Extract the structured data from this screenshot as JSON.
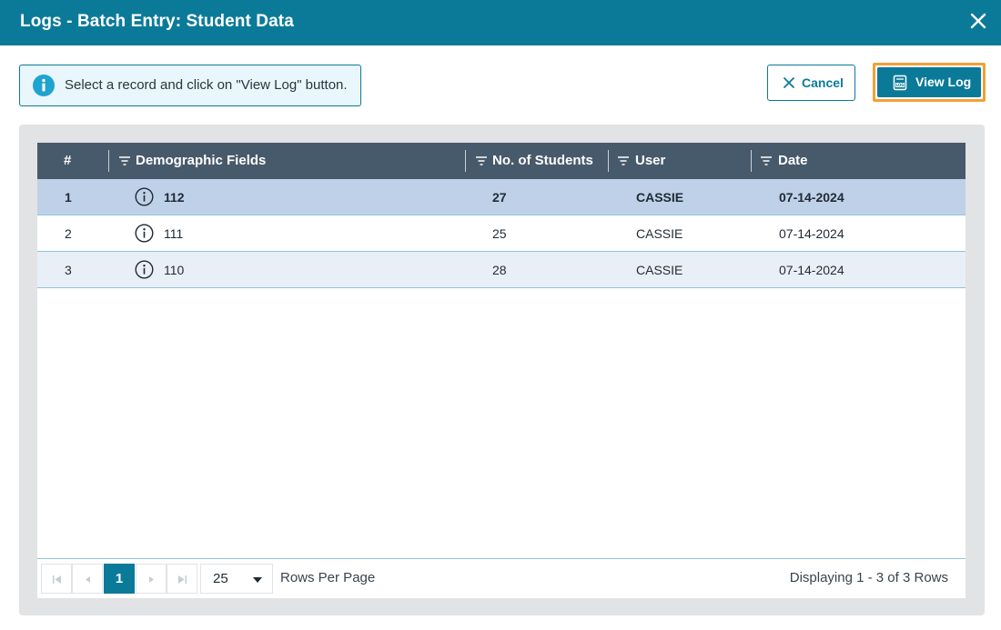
{
  "dialog": {
    "title": "Logs - Batch Entry: Student Data",
    "close_icon": "close-icon"
  },
  "info": {
    "icon": "info-circle-icon",
    "message": "Select a record and click on \"View Log\" button."
  },
  "actions": {
    "cancel_label": "Cancel",
    "view_log_label": "View Log"
  },
  "table": {
    "columns": [
      {
        "label": "#",
        "filter": false
      },
      {
        "label": "Demographic Fields",
        "filter": true
      },
      {
        "label": "No. of Students",
        "filter": true
      },
      {
        "label": "User",
        "filter": true
      },
      {
        "label": "Date",
        "filter": true
      }
    ],
    "rows": [
      {
        "num": "1",
        "field": "112",
        "students": "27",
        "user": "CASSIE",
        "date": "07-14-2024",
        "selected": true
      },
      {
        "num": "2",
        "field": "111",
        "students": "25",
        "user": "CASSIE",
        "date": "07-14-2024",
        "selected": false
      },
      {
        "num": "3",
        "field": "110",
        "students": "28",
        "user": "CASSIE",
        "date": "07-14-2024",
        "selected": false
      }
    ]
  },
  "pager": {
    "current_page": "1",
    "page_size": "25",
    "rows_per_page_label": "Rows Per Page",
    "displaying": "Displaying 1 - 3 of 3 Rows"
  },
  "colors": {
    "primary": "#0b7a99",
    "header": "#475a6b",
    "selected_row": "#bed1e8",
    "highlight_outline": "#f3a033"
  }
}
